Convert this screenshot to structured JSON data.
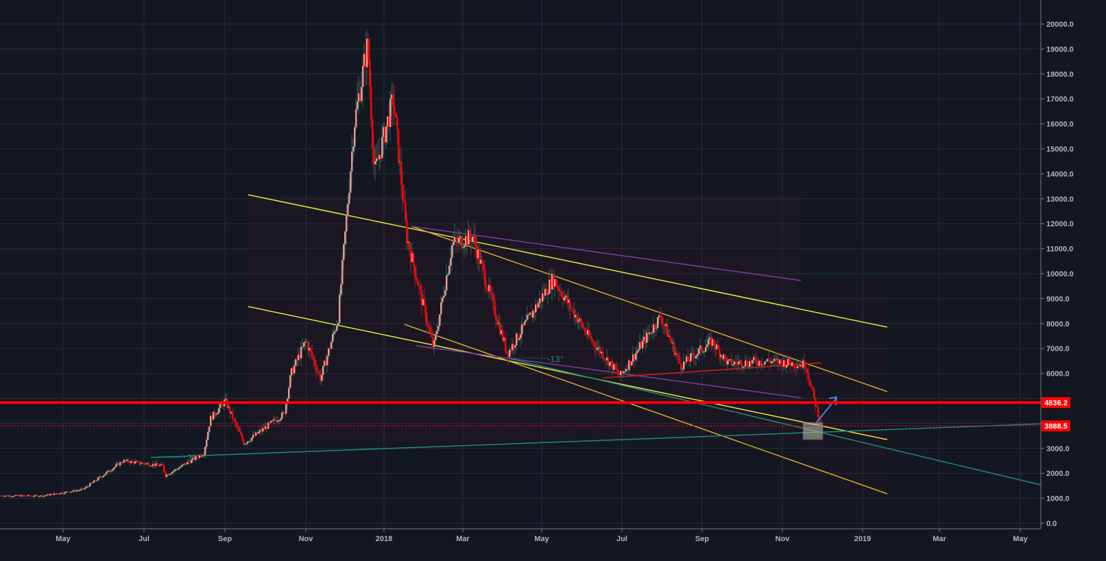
{
  "chart": {
    "symbol_context": "BTC daily candlestick chart with trendlines",
    "colors": {
      "background": "#131722",
      "grid": "#2a2e39",
      "axis_text": "#b2b5be",
      "candle_up": "#e9968f",
      "candle_down": "#ff0000",
      "wick_up": "#1f6e5a",
      "wick_down": "#8b2a35",
      "trend_yellow": "#e8e83a",
      "trend_orange": "#d9a82b",
      "trend_purple": "#7b3fa0",
      "trend_teal": "#1f8a78",
      "trend_red": "#e01818",
      "support_line": "#ff0000",
      "arrow": "#4a7fd6",
      "box_fill": "#b7b39a"
    },
    "price_tags": [
      {
        "label": "4836.2",
        "value": 4836.2,
        "style": "solid"
      },
      {
        "label": "3888.5",
        "value": 3888.5,
        "style": "dashed"
      }
    ],
    "annotations": [
      {
        "text": "-13°",
        "type": "angle"
      },
      {
        "text": "3°",
        "type": "angle"
      }
    ]
  },
  "chart_data": {
    "type": "candlestick",
    "title": "",
    "xlabel": "",
    "ylabel": "",
    "ylim": [
      0,
      20000
    ],
    "grid": true,
    "y_ticks": [
      "20000.0",
      "19000.0",
      "18000.0",
      "17000.0",
      "16000.0",
      "15000.0",
      "14000.0",
      "13000.0",
      "12000.0",
      "11000.0",
      "10000.0",
      "9000.0",
      "8000.0",
      "7000.0",
      "6000.0",
      "5000.0",
      "4000.0",
      "3000.0",
      "2000.0",
      "1000.0",
      "0.0"
    ],
    "x_ticks": [
      "May",
      "Jul",
      "Sep",
      "Nov",
      "2018",
      "Mar",
      "May",
      "Jul",
      "Sep",
      "Nov",
      "2019",
      "Mar",
      "May"
    ],
    "approx_close_series": [
      {
        "date": "2017-04",
        "close": 1100
      },
      {
        "date": "2017-05",
        "close": 1350
      },
      {
        "date": "2017-06",
        "close": 2500
      },
      {
        "date": "2017-07",
        "close": 2300
      },
      {
        "date": "2017-07-16",
        "close": 1900
      },
      {
        "date": "2017-08",
        "close": 2800
      },
      {
        "date": "2017-08-20",
        "close": 4200
      },
      {
        "date": "2017-09-01",
        "close": 4900
      },
      {
        "date": "2017-09-15",
        "close": 3200
      },
      {
        "date": "2017-10",
        "close": 4400
      },
      {
        "date": "2017-10-20",
        "close": 6000
      },
      {
        "date": "2017-11-01",
        "close": 7300
      },
      {
        "date": "2017-11-12",
        "close": 5800
      },
      {
        "date": "2017-11-25",
        "close": 8200
      },
      {
        "date": "2017-12-07",
        "close": 16000
      },
      {
        "date": "2017-12-17",
        "close": 19200
      },
      {
        "date": "2017-12-22",
        "close": 14000
      },
      {
        "date": "2018-01-06",
        "close": 17000
      },
      {
        "date": "2018-01-16",
        "close": 11500
      },
      {
        "date": "2018-02-06",
        "close": 7000
      },
      {
        "date": "2018-02-20",
        "close": 11200
      },
      {
        "date": "2018-03-05",
        "close": 11500
      },
      {
        "date": "2018-04-01",
        "close": 6800
      },
      {
        "date": "2018-05-05",
        "close": 9800
      },
      {
        "date": "2018-06-01",
        "close": 7500
      },
      {
        "date": "2018-06-25",
        "close": 5900
      },
      {
        "date": "2018-07-25",
        "close": 8300
      },
      {
        "date": "2018-08-10",
        "close": 6300
      },
      {
        "date": "2018-09-03",
        "close": 7300
      },
      {
        "date": "2018-09-15",
        "close": 6400
      },
      {
        "date": "2018-10-15",
        "close": 6500
      },
      {
        "date": "2018-11-13",
        "close": 6350
      },
      {
        "date": "2018-11-20",
        "close": 4800
      },
      {
        "date": "2018-11-25",
        "close": 3888.5
      }
    ],
    "horizontal_levels": [
      {
        "value": 4836.2,
        "color": "#ff0000",
        "style": "solid"
      },
      {
        "value": 3888.5,
        "color": "#ff0000",
        "style": "dashed"
      }
    ],
    "trendlines_description": "Descending yellow/orange channel lines from Dec 2017 high, purple descending lines, teal rising support from Jul 2017 (3°) and teal descending line (-13°), red flat line Jul–Nov 2018, blue arrow projecting up from 3888.5 box"
  }
}
